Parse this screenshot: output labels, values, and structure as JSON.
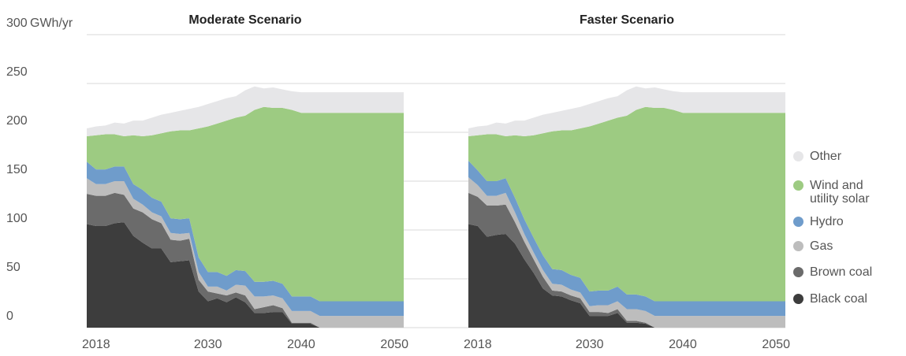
{
  "chart_data": [
    {
      "type": "area",
      "stacked": true,
      "title": "Moderate Scenario",
      "ylabel": "GWh/yr",
      "x": [
        2017,
        2018,
        2019,
        2020,
        2021,
        2022,
        2023,
        2024,
        2025,
        2026,
        2027,
        2028,
        2029,
        2030,
        2031,
        2032,
        2033,
        2034,
        2035,
        2036,
        2037,
        2038,
        2039,
        2040,
        2041,
        2042,
        2043,
        2044,
        2045,
        2046,
        2047,
        2048,
        2049,
        2050,
        2051
      ],
      "xlim": [
        2017,
        2051
      ],
      "xticks": [
        2018,
        2030,
        2040,
        2050
      ],
      "ylim": [
        0,
        300
      ],
      "yticks": [
        0,
        50,
        100,
        150,
        200,
        250,
        300
      ],
      "grid": true,
      "series": [
        {
          "name": "Black coal",
          "color": "#3d3d3d",
          "values": [
            106,
            104,
            104,
            107,
            108,
            94,
            87,
            81,
            81,
            67,
            68,
            69,
            37,
            27,
            30,
            26,
            31,
            26,
            15,
            15,
            16,
            16,
            4,
            4,
            4,
            0,
            0,
            0,
            0,
            0,
            0,
            0,
            0,
            0,
            0
          ]
        },
        {
          "name": "Brown coal",
          "color": "#6b6b6b",
          "values": [
            31,
            31,
            31,
            31,
            28,
            28,
            31,
            30,
            26,
            23,
            21,
            22,
            12,
            10,
            5,
            7,
            5,
            7,
            4,
            6,
            7,
            4,
            1,
            1,
            1,
            0,
            0,
            0,
            0,
            0,
            0,
            0,
            0,
            0,
            0
          ]
        },
        {
          "name": "Gas",
          "color": "#bdbdbd",
          "values": [
            16,
            12,
            12,
            12,
            14,
            10,
            8,
            7,
            7,
            7,
            7,
            6,
            8,
            5,
            7,
            5,
            8,
            10,
            13,
            11,
            10,
            10,
            12,
            12,
            12,
            12,
            12,
            12,
            12,
            12,
            12,
            12,
            12,
            12,
            12
          ]
        },
        {
          "name": "Hydro",
          "color": "#6f9ccb",
          "values": [
            17,
            15,
            15,
            15,
            15,
            15,
            15,
            15,
            15,
            15,
            15,
            15,
            15,
            15,
            15,
            15,
            15,
            15,
            15,
            15,
            15,
            15,
            15,
            15,
            15,
            15,
            15,
            15,
            15,
            15,
            15,
            15,
            15,
            15,
            15
          ]
        },
        {
          "name": "Wind and utility solar",
          "color": "#9dcb82",
          "values": [
            26,
            35,
            36,
            33,
            31,
            50,
            55,
            64,
            70,
            89,
            91,
            90,
            132,
            149,
            152,
            159,
            156,
            159,
            176,
            179,
            177,
            180,
            191,
            188,
            188,
            193,
            193,
            193,
            193,
            193,
            193,
            193,
            193,
            193,
            193
          ]
        },
        {
          "name": "Other",
          "color": "#e6e6e8",
          "values": [
            8,
            9,
            9,
            12,
            13,
            15,
            16,
            18,
            19,
            19,
            20,
            22,
            22,
            23,
            23,
            23,
            22,
            26,
            24,
            19,
            21,
            19,
            19,
            21,
            21,
            21,
            21,
            21,
            21,
            21,
            21,
            21,
            21,
            21,
            21
          ]
        }
      ]
    },
    {
      "type": "area",
      "stacked": true,
      "title": "Faster Scenario",
      "x": [
        2017,
        2018,
        2019,
        2020,
        2021,
        2022,
        2023,
        2024,
        2025,
        2026,
        2027,
        2028,
        2029,
        2030,
        2031,
        2032,
        2033,
        2034,
        2035,
        2036,
        2037,
        2038,
        2039,
        2040,
        2041,
        2042,
        2043,
        2044,
        2045,
        2046,
        2047,
        2048,
        2049,
        2050,
        2051
      ],
      "xlim": [
        2017,
        2051
      ],
      "xticks": [
        2018,
        2030,
        2040,
        2050
      ],
      "ylim": [
        0,
        300
      ],
      "series": [
        {
          "name": "Black coal",
          "color": "#3d3d3d",
          "values": [
            106,
            104,
            93,
            95,
            96,
            86,
            70,
            56,
            40,
            33,
            32,
            28,
            25,
            12,
            12,
            12,
            15,
            5,
            5,
            4,
            0,
            0,
            0,
            0,
            0,
            0,
            0,
            0,
            0,
            0,
            0,
            0,
            0,
            0,
            0
          ]
        },
        {
          "name": "Brown coal",
          "color": "#6b6b6b",
          "values": [
            32,
            30,
            32,
            30,
            30,
            22,
            18,
            14,
            12,
            5,
            5,
            5,
            5,
            4,
            4,
            3,
            4,
            2,
            2,
            1,
            0,
            0,
            0,
            0,
            0,
            0,
            0,
            0,
            0,
            0,
            0,
            0,
            0,
            0,
            0
          ]
        },
        {
          "name": "Gas",
          "color": "#bdbdbd",
          "values": [
            16,
            12,
            10,
            10,
            12,
            10,
            8,
            7,
            7,
            7,
            7,
            6,
            6,
            6,
            7,
            8,
            8,
            12,
            12,
            12,
            12,
            12,
            12,
            12,
            12,
            12,
            12,
            12,
            12,
            12,
            12,
            12,
            12,
            12,
            12
          ]
        },
        {
          "name": "Hydro",
          "color": "#6f9ccb",
          "values": [
            17,
            15,
            15,
            15,
            15,
            15,
            15,
            15,
            15,
            15,
            15,
            15,
            15,
            15,
            15,
            15,
            15,
            15,
            15,
            15,
            15,
            15,
            15,
            15,
            15,
            15,
            15,
            15,
            15,
            15,
            15,
            15,
            15,
            15,
            15
          ]
        },
        {
          "name": "Wind and utility solar",
          "color": "#9dcb82",
          "values": [
            25,
            36,
            48,
            48,
            43,
            64,
            85,
            105,
            125,
            141,
            143,
            148,
            153,
            169,
            171,
            174,
            173,
            183,
            189,
            194,
            198,
            198,
            196,
            193,
            193,
            193,
            193,
            193,
            193,
            193,
            193,
            193,
            193,
            193,
            193
          ]
        },
        {
          "name": "Other",
          "color": "#e6e6e8",
          "values": [
            8,
            9,
            9,
            12,
            13,
            15,
            16,
            18,
            19,
            19,
            20,
            22,
            22,
            23,
            23,
            23,
            22,
            26,
            24,
            19,
            21,
            19,
            19,
            21,
            21,
            21,
            21,
            21,
            21,
            21,
            21,
            21,
            21,
            21,
            21
          ]
        }
      ]
    }
  ]
}
